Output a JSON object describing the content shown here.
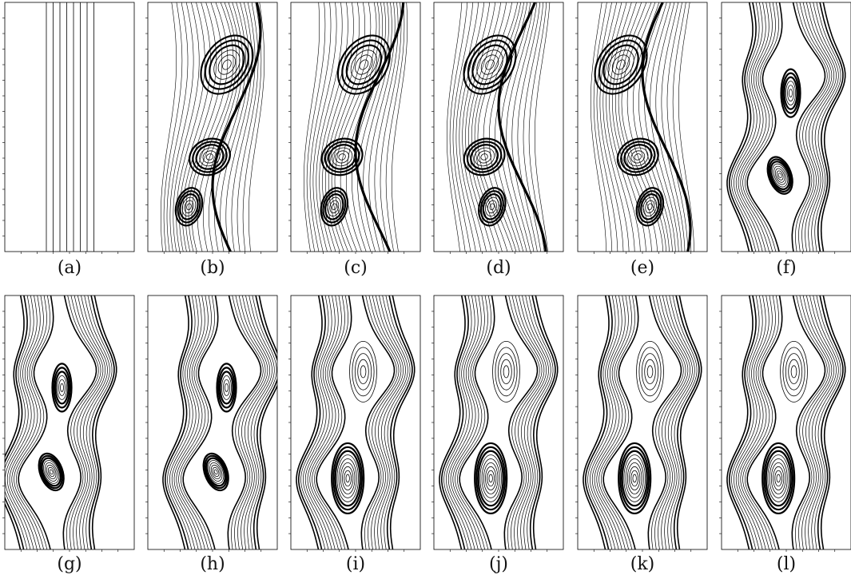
{
  "panels": [
    {
      "label": "(a)",
      "pattern": "initial-parallel"
    },
    {
      "label": "(b)",
      "pattern": "single-roll"
    },
    {
      "label": "(c)",
      "pattern": "double-roll"
    },
    {
      "label": "(d)",
      "pattern": "turbulent-wave"
    },
    {
      "label": "(e)",
      "pattern": "filament"
    },
    {
      "label": "(f)",
      "pattern": "split-vortex"
    },
    {
      "label": "(g)",
      "pattern": "two-vortex-left"
    },
    {
      "label": "(h)",
      "pattern": "two-vortex-right"
    },
    {
      "label": "(i)",
      "pattern": "cat-eye"
    },
    {
      "label": "(j)",
      "pattern": "cat-eye"
    },
    {
      "label": "(k)",
      "pattern": "cat-eye"
    },
    {
      "label": "(l)",
      "pattern": "cat-eye"
    }
  ],
  "line_color": "#000000"
}
